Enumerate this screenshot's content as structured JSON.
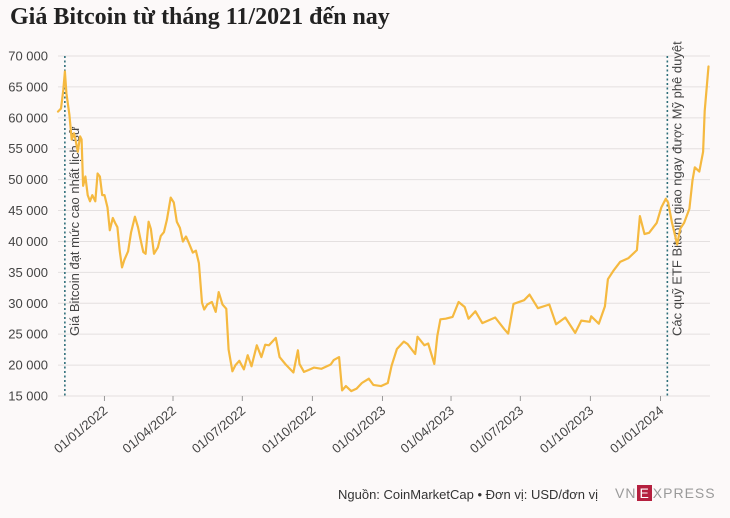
{
  "page": {
    "title": "Giá Bitcoin từ tháng 11/2021 đến nay"
  },
  "footer": {
    "source": "Nguồn: CoinMarketCap • Đơn vị: USD/đơn vị"
  },
  "logo": {
    "prefix": "VN",
    "mid": "E",
    "suffix": "XPRESS"
  },
  "colors": {
    "line": "#f5b940",
    "marker": "#2f6f7a",
    "grid": "#e4e0e0"
  },
  "chart_data": {
    "type": "line",
    "title": "Giá Bitcoin từ tháng 11/2021 đến nay",
    "xlabel": "",
    "ylabel": "",
    "x_tick_labels": [
      "01/01/2022",
      "01/04/2022",
      "01/07/2022",
      "01/10/2022",
      "01/01/2023",
      "01/04/2023",
      "01/07/2023",
      "01/10/2023",
      "01/01/2024"
    ],
    "x_tick_dates": [
      "2022-01-01",
      "2022-04-01",
      "2022-07-01",
      "2022-10-01",
      "2023-01-01",
      "2023-04-01",
      "2023-07-01",
      "2023-10-01",
      "2024-01-01"
    ],
    "xlim": [
      "2021-11-01",
      "2024-03-06"
    ],
    "y_tick_labels": [
      "15 000",
      "20 000",
      "25 000",
      "30 000",
      "35 000",
      "40 000",
      "45 000",
      "50 000",
      "55 000",
      "60 000",
      "65 000",
      "70 000"
    ],
    "ylim": [
      15000,
      70000
    ],
    "grid": true,
    "annotations": [
      {
        "date": "2021-11-10",
        "text": "Giá Bitcoin đạt mức cao nhất lịch sử"
      },
      {
        "date": "2024-01-10",
        "text": "Các quỹ ETF Bitcoin giao ngay được Mỹ phê duyệt"
      }
    ],
    "series": [
      {
        "points": [
          [
            "2021-11-01",
            61000
          ],
          [
            "2021-11-05",
            61500
          ],
          [
            "2021-11-08",
            64500
          ],
          [
            "2021-11-10",
            67500
          ],
          [
            "2021-11-12",
            64000
          ],
          [
            "2021-11-16",
            60500
          ],
          [
            "2021-11-19",
            56500
          ],
          [
            "2021-11-22",
            57500
          ],
          [
            "2021-11-24",
            56500
          ],
          [
            "2021-11-27",
            54500
          ],
          [
            "2021-11-30",
            57000
          ],
          [
            "2021-12-02",
            56500
          ],
          [
            "2021-12-04",
            49000
          ],
          [
            "2021-12-07",
            50500
          ],
          [
            "2021-12-10",
            47500
          ],
          [
            "2021-12-13",
            46500
          ],
          [
            "2021-12-16",
            47500
          ],
          [
            "2021-12-20",
            46500
          ],
          [
            "2021-12-23",
            51000
          ],
          [
            "2021-12-26",
            50500
          ],
          [
            "2021-12-29",
            47500
          ],
          [
            "2022-01-01",
            47500
          ],
          [
            "2022-01-05",
            45500
          ],
          [
            "2022-01-08",
            41800
          ],
          [
            "2022-01-12",
            43800
          ],
          [
            "2022-01-15",
            43000
          ],
          [
            "2022-01-18",
            42300
          ],
          [
            "2022-01-21",
            38500
          ],
          [
            "2022-01-24",
            35800
          ],
          [
            "2022-01-27",
            37000
          ],
          [
            "2022-02-01",
            38400
          ],
          [
            "2022-02-05",
            41500
          ],
          [
            "2022-02-10",
            44000
          ],
          [
            "2022-02-14",
            42300
          ],
          [
            "2022-02-17",
            40500
          ],
          [
            "2022-02-21",
            38300
          ],
          [
            "2022-02-24",
            38000
          ],
          [
            "2022-02-28",
            43200
          ],
          [
            "2022-03-03",
            42000
          ],
          [
            "2022-03-07",
            38000
          ],
          [
            "2022-03-12",
            39000
          ],
          [
            "2022-03-16",
            40900
          ],
          [
            "2022-03-20",
            41500
          ],
          [
            "2022-03-24",
            43500
          ],
          [
            "2022-03-29",
            47100
          ],
          [
            "2022-04-02",
            46300
          ],
          [
            "2022-04-06",
            43200
          ],
          [
            "2022-04-10",
            42200
          ],
          [
            "2022-04-14",
            40000
          ],
          [
            "2022-04-18",
            40800
          ],
          [
            "2022-04-22",
            39700
          ],
          [
            "2022-04-27",
            38200
          ],
          [
            "2022-05-01",
            38500
          ],
          [
            "2022-05-05",
            36500
          ],
          [
            "2022-05-09",
            30100
          ],
          [
            "2022-05-12",
            29000
          ],
          [
            "2022-05-16",
            29800
          ],
          [
            "2022-05-22",
            30200
          ],
          [
            "2022-05-27",
            28600
          ],
          [
            "2022-05-31",
            31800
          ],
          [
            "2022-06-05",
            29800
          ],
          [
            "2022-06-10",
            29100
          ],
          [
            "2022-06-13",
            22500
          ],
          [
            "2022-06-18",
            19000
          ],
          [
            "2022-06-22",
            20000
          ],
          [
            "2022-06-27",
            20700
          ],
          [
            "2022-07-03",
            19300
          ],
          [
            "2022-07-08",
            21600
          ],
          [
            "2022-07-13",
            19800
          ],
          [
            "2022-07-20",
            23200
          ],
          [
            "2022-07-26",
            21300
          ],
          [
            "2022-07-31",
            23300
          ],
          [
            "2022-08-05",
            23200
          ],
          [
            "2022-08-14",
            24400
          ],
          [
            "2022-08-19",
            21300
          ],
          [
            "2022-08-27",
            20100
          ],
          [
            "2022-09-06",
            18800
          ],
          [
            "2022-09-12",
            22400
          ],
          [
            "2022-09-14",
            20200
          ],
          [
            "2022-09-20",
            18900
          ],
          [
            "2022-09-26",
            19200
          ],
          [
            "2022-10-03",
            19600
          ],
          [
            "2022-10-13",
            19400
          ],
          [
            "2022-10-25",
            20100
          ],
          [
            "2022-10-29",
            20800
          ],
          [
            "2022-11-05",
            21300
          ],
          [
            "2022-11-09",
            15900
          ],
          [
            "2022-11-14",
            16600
          ],
          [
            "2022-11-21",
            15800
          ],
          [
            "2022-11-28",
            16200
          ],
          [
            "2022-12-05",
            17100
          ],
          [
            "2022-12-14",
            17800
          ],
          [
            "2022-12-20",
            16800
          ],
          [
            "2022-12-30",
            16600
          ],
          [
            "2023-01-08",
            17100
          ],
          [
            "2023-01-13",
            19900
          ],
          [
            "2023-01-20",
            22600
          ],
          [
            "2023-01-29",
            23800
          ],
          [
            "2023-02-03",
            23400
          ],
          [
            "2023-02-13",
            21800
          ],
          [
            "2023-02-16",
            24600
          ],
          [
            "2023-02-25",
            23200
          ],
          [
            "2023-03-02",
            23500
          ],
          [
            "2023-03-10",
            20200
          ],
          [
            "2023-03-14",
            24700
          ],
          [
            "2023-03-18",
            27400
          ],
          [
            "2023-03-25",
            27500
          ],
          [
            "2023-04-03",
            27800
          ],
          [
            "2023-04-11",
            30200
          ],
          [
            "2023-04-19",
            29400
          ],
          [
            "2023-04-24",
            27500
          ],
          [
            "2023-05-03",
            28700
          ],
          [
            "2023-05-12",
            26800
          ],
          [
            "2023-05-29",
            27700
          ],
          [
            "2023-06-10",
            25800
          ],
          [
            "2023-06-15",
            25100
          ],
          [
            "2023-06-22",
            29900
          ],
          [
            "2023-07-06",
            30500
          ],
          [
            "2023-07-13",
            31400
          ],
          [
            "2023-07-24",
            29200
          ],
          [
            "2023-08-08",
            29800
          ],
          [
            "2023-08-17",
            26600
          ],
          [
            "2023-08-29",
            27700
          ],
          [
            "2023-09-11",
            25200
          ],
          [
            "2023-09-19",
            27200
          ],
          [
            "2023-09-30",
            27000
          ],
          [
            "2023-10-02",
            27900
          ],
          [
            "2023-10-12",
            26700
          ],
          [
            "2023-10-20",
            29500
          ],
          [
            "2023-10-24",
            33900
          ],
          [
            "2023-11-01",
            35400
          ],
          [
            "2023-11-09",
            36700
          ],
          [
            "2023-11-20",
            37300
          ],
          [
            "2023-12-01",
            38600
          ],
          [
            "2023-12-05",
            44100
          ],
          [
            "2023-12-11",
            41200
          ],
          [
            "2023-12-17",
            41400
          ],
          [
            "2023-12-27",
            43000
          ],
          [
            "2024-01-02",
            45500
          ],
          [
            "2024-01-08",
            46900
          ],
          [
            "2024-01-11",
            46300
          ],
          [
            "2024-01-16",
            43100
          ],
          [
            "2024-01-23",
            39500
          ],
          [
            "2024-01-27",
            42100
          ],
          [
            "2024-02-01",
            43000
          ],
          [
            "2024-02-08",
            45300
          ],
          [
            "2024-02-12",
            49900
          ],
          [
            "2024-02-15",
            52000
          ],
          [
            "2024-02-21",
            51300
          ],
          [
            "2024-02-26",
            54500
          ],
          [
            "2024-02-28",
            61100
          ],
          [
            "2024-03-04",
            68300
          ]
        ]
      }
    ]
  }
}
